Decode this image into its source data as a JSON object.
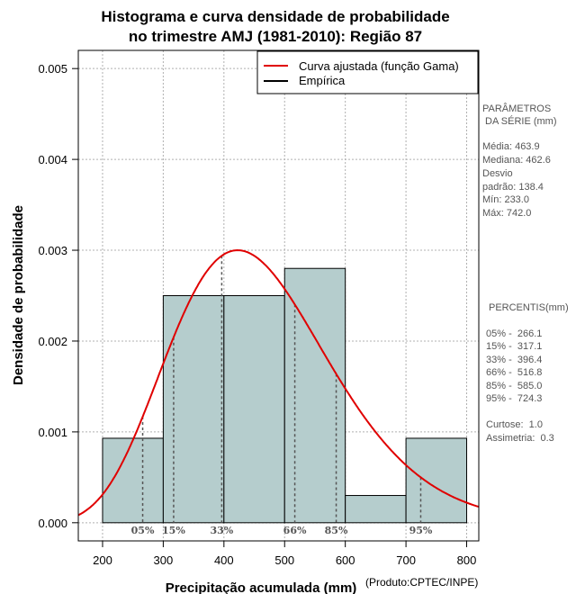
{
  "chart_data": {
    "type": "bar",
    "title_lines": [
      "Histograma e curva densidade de probabilidade",
      "no trimestre AMJ (1981-2010): Região 87"
    ],
    "xlabel": "Precipitação acumulada (mm)",
    "ylabel": "Densidade de probabilidade",
    "credit": "(Produto:CPTEC/INPE)",
    "xlim": [
      160,
      820
    ],
    "ylim": [
      -0.0002,
      0.0052
    ],
    "x_ticks": [
      200,
      300,
      400,
      500,
      600,
      700,
      800
    ],
    "y_ticks": [
      0.0,
      0.001,
      0.002,
      0.003,
      0.004,
      0.005
    ],
    "y_tick_labels": [
      "0.000",
      "0.001",
      "0.002",
      "0.003",
      "0.004",
      "0.005"
    ],
    "bins": [
      {
        "start": 200,
        "end": 300,
        "density": 0.00093
      },
      {
        "start": 300,
        "end": 400,
        "density": 0.0025
      },
      {
        "start": 400,
        "end": 500,
        "density": 0.0025
      },
      {
        "start": 500,
        "end": 600,
        "density": 0.0028
      },
      {
        "start": 600,
        "end": 700,
        "density": 0.0003
      },
      {
        "start": 700,
        "end": 800,
        "density": 0.00093
      }
    ],
    "gamma_fit": {
      "mean": 463.9,
      "sd": 138.4,
      "mode_peak": 0.003
    },
    "percentile_lines": [
      {
        "label": "05%",
        "value": 266.1
      },
      {
        "label": "15%",
        "value": 317.1
      },
      {
        "label": "33%",
        "value": 396.4
      },
      {
        "label": "66%",
        "value": 516.8
      },
      {
        "label": "85%",
        "value": 585.0
      },
      {
        "label": "95%",
        "value": 724.3
      }
    ],
    "legend": [
      {
        "label": "Curva ajustada (função Gama)",
        "color": "#e00000"
      },
      {
        "label": "Empírica",
        "color": "#000000"
      }
    ],
    "colors": {
      "bar_fill": "#b5cdcd",
      "bar_stroke": "#000000",
      "curve": "#e00000",
      "grid": "#b0b0b0"
    }
  },
  "side_panel": {
    "params_title": [
      "PARÂMETROS",
      " DA SÉRIE (mm)"
    ],
    "params": [
      "Média:  463.9",
      "Mediana:  462.6",
      "Desvio",
      "padrão:  138.4",
      "Mín:  233.0",
      "Máx:  742.0"
    ],
    "percentis_title": "PERCENTIS(mm)",
    "percentis": [
      "05% -  266.1",
      "15% -  317.1",
      "33% -  396.4",
      "66% -  516.8",
      "85% -  585.0",
      "95% -  724.3"
    ],
    "curtose": "Curtose:  1.0",
    "assimetria": "Assimetria:  0.3"
  }
}
